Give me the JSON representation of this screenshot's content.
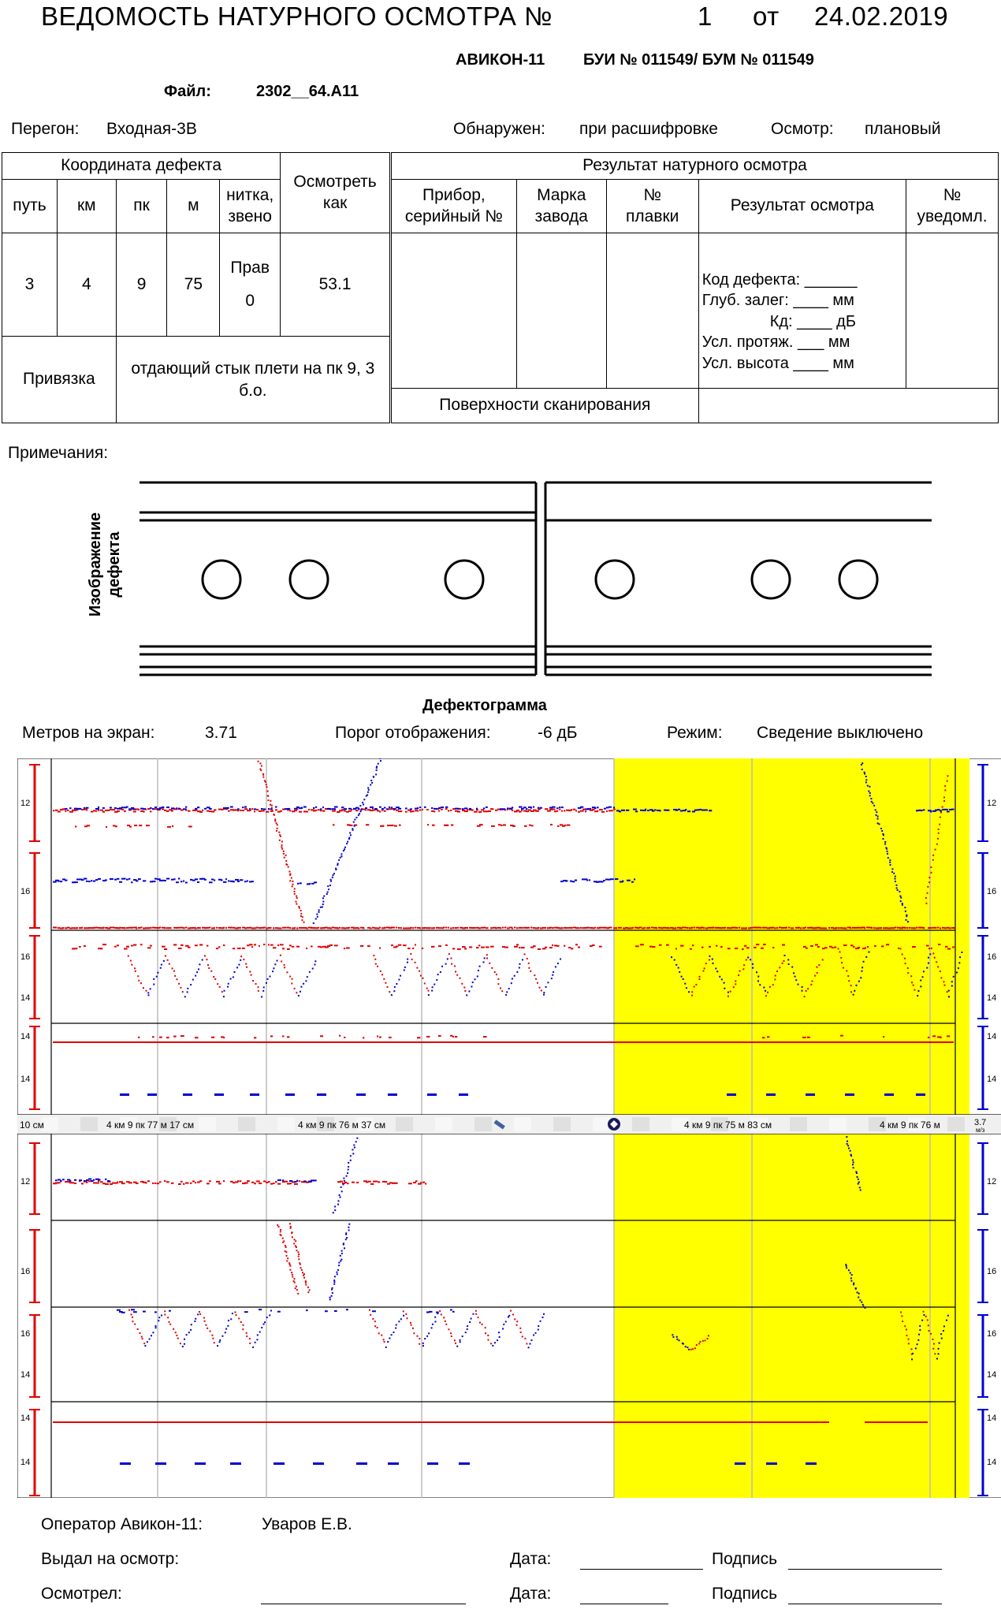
{
  "header": {
    "title": "ВЕДОМОСТЬ НАТУРНОГО ОСМОТРА №",
    "number": "1",
    "from_label": "от",
    "date": "24.02.2019",
    "device": "АВИКОН-11",
    "bui": "БУИ № 011549/ БУМ № 011549",
    "file_label": "Файл:",
    "file_name": "2302__64.A11"
  },
  "info": {
    "peregon_label": "Перегон:",
    "peregon_value": "Входная-3В",
    "found_label": "Обнаружен:",
    "found_value": "при расшифровке",
    "inspection_label": "Осмотр:",
    "inspection_value": "плановый"
  },
  "table": {
    "coord_header": "Координата дефекта",
    "inspect_as_header": "Осмотреть как",
    "result_header": "Результат натурного осмотра",
    "cols": [
      "путь",
      "км",
      "пк",
      "м",
      "нитка, звено"
    ],
    "values": [
      "3",
      "4",
      "9",
      "75"
    ],
    "thread_line1": "Прав",
    "thread_line2": "0",
    "inspect_as_value": "53.1",
    "result_cols": [
      "Прибор, серийный №",
      "Марка завода",
      "№ плавки",
      "Результат осмотра",
      "№ уведомл."
    ],
    "result_lines": [
      "Код дефекта: ______",
      "Глуб. залег: ____ мм",
      "Кд: ____ дБ",
      "Усл. протяж. ___ мм",
      "Усл. высота ____ мм"
    ],
    "binding_label": "Привязка",
    "binding_value": "отдающий стык плети на пк 9, 3 б.о.",
    "scan_surfaces": "Поверхности сканирования"
  },
  "notes_label": "Примечания:",
  "defect_image_label_1": "Изображение",
  "defect_image_label_2": "дефекта",
  "defectogram": {
    "title": "Дефектограмма",
    "meters_label": "Метров на экран:",
    "meters_value": "3.71",
    "threshold_label": "Порог отображения:",
    "threshold_value": "-6 дБ",
    "mode_label": "Режим:",
    "mode_value": "Сведение выключено",
    "ruler_scale": "10 см",
    "ruler_labels": [
      "4 км 9 пк 77 м 17 см",
      "4 км 9 пк 76 м 37 см",
      "4 км 9 пк 75 м 83 см",
      "4 км 9 пк 76 м"
    ],
    "speed": "3.7",
    "speed_unit": "м/з",
    "channel_ticks_top": [
      "12",
      "16",
      "16",
      "14",
      "14",
      "14"
    ],
    "channel_ticks_bottom": [
      "12",
      "16",
      "16",
      "14",
      "14",
      "14"
    ],
    "colors": {
      "highlight": "#ffff00",
      "red_channel": "#e00000",
      "blue_channel": "#0000d0"
    }
  },
  "footer": {
    "operator_label": "Оператор Авикон-11:",
    "operator_value": "Уваров Е.В.",
    "issued_label": "Выдал на осмотр:",
    "date_label": "Дата:",
    "sign_label": "Подпись",
    "inspected_label": "Осмотрел:"
  }
}
